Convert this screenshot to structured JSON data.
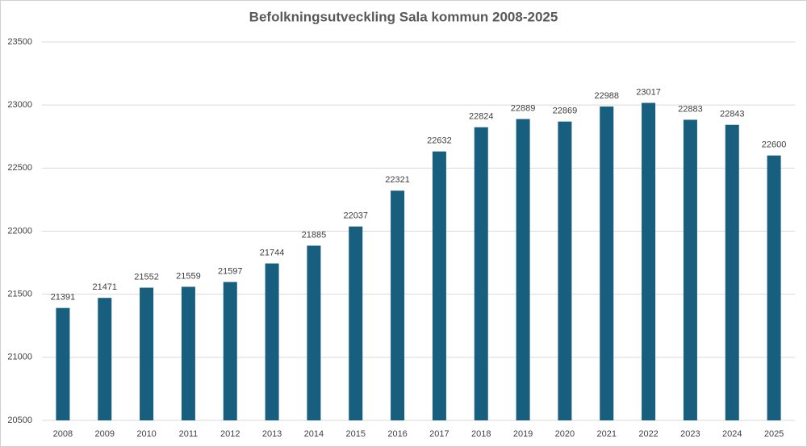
{
  "chart_data": {
    "type": "bar",
    "title": "Befolkningsutveckling Sala kommun 2008-2025",
    "categories": [
      "2008",
      "2009",
      "2010",
      "2011",
      "2012",
      "2013",
      "2014",
      "2015",
      "2016",
      "2017",
      "2018",
      "2019",
      "2020",
      "2021",
      "2022",
      "2023",
      "2024",
      "2025"
    ],
    "values": [
      21391,
      21471,
      21552,
      21559,
      21597,
      21744,
      21885,
      22037,
      22321,
      22632,
      22824,
      22889,
      22869,
      22988,
      23017,
      22883,
      22843,
      22600
    ],
    "color": "#175e7f",
    "ylim": [
      20500,
      23500
    ],
    "yticks": [
      20500,
      21000,
      21500,
      22000,
      22500,
      23000,
      23500
    ],
    "grid": true
  }
}
